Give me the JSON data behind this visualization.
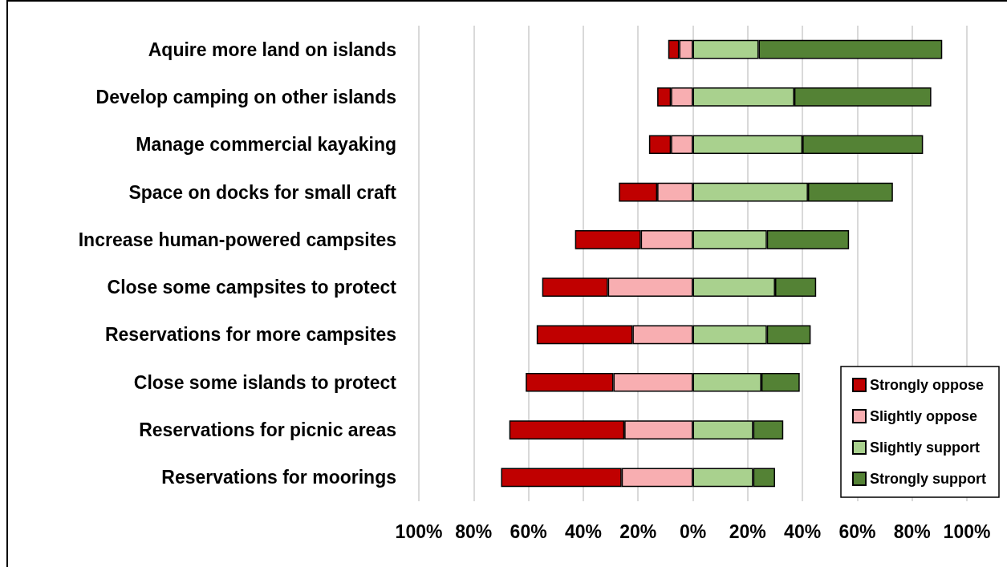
{
  "chart_data": {
    "type": "bar",
    "orientation": "horizontal",
    "stacked": true,
    "categories": [
      "Aquire more land on islands",
      "Develop camping on other islands",
      "Manage commercial kayaking",
      "Space on docks for small craft",
      "Increase human-powered campsites",
      "Close some campsites to protect",
      "Reservations for more campsites",
      "Close some islands to protect",
      "Reservations for picnic areas",
      "Reservations for moorings"
    ],
    "series": [
      {
        "name": "Slightly oppose",
        "color": "#f8aeb1",
        "values": [
          -5,
          -8,
          -8,
          -13,
          -19,
          -31,
          -22,
          -29,
          -25,
          -26
        ]
      },
      {
        "name": "Strongly oppose",
        "color": "#c00000",
        "values": [
          -4,
          -5,
          -8,
          -14,
          -24,
          -24,
          -35,
          -32,
          -42,
          -44
        ]
      },
      {
        "name": "Slightly support",
        "color": "#a9d18e",
        "values": [
          24,
          37,
          40,
          42,
          27,
          30,
          27,
          25,
          22,
          22
        ]
      },
      {
        "name": "Strongly support",
        "color": "#548235",
        "values": [
          67,
          50,
          44,
          31,
          30,
          15,
          16,
          14,
          11,
          8
        ]
      }
    ],
    "xlim": [
      -100,
      100
    ],
    "xticks": [
      {
        "value": -100,
        "label": "100%"
      },
      {
        "value": -80,
        "label": "80%"
      },
      {
        "value": -60,
        "label": "60%"
      },
      {
        "value": -40,
        "label": "40%"
      },
      {
        "value": -20,
        "label": "20%"
      },
      {
        "value": 0,
        "label": "0%"
      },
      {
        "value": 20,
        "label": "20%"
      },
      {
        "value": 40,
        "label": "40%"
      },
      {
        "value": 60,
        "label": "60%"
      },
      {
        "value": 80,
        "label": "80%"
      },
      {
        "value": 100,
        "label": "100%"
      }
    ],
    "grid": "x",
    "legend": "bottom right"
  }
}
